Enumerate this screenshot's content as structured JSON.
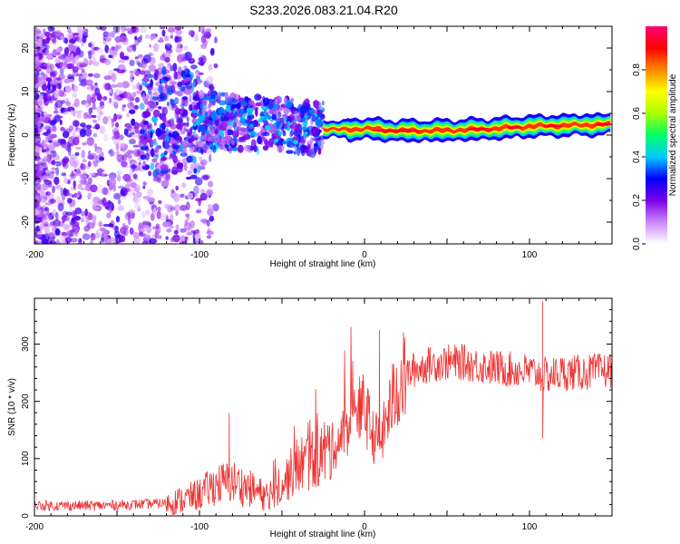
{
  "title": "S233.2026.083.21.04.R20",
  "chart_data": [
    {
      "type": "heatmap",
      "name": "spectrogram",
      "xlabel": "Height of straight line (km)",
      "ylabel": "Frequency (Hz)",
      "xlim": [
        -200,
        150
      ],
      "ylim": [
        -25,
        25
      ],
      "xticks": [
        -200,
        -100,
        0,
        100
      ],
      "yticks": [
        -20,
        -10,
        0,
        10,
        20
      ],
      "colorbar": {
        "label": "Normalized spectral amplitude",
        "range": [
          0,
          1
        ],
        "ticks": [
          "0.0",
          "0.2",
          "0.4",
          "0.6",
          "0.8"
        ],
        "colors": [
          "#ffffff",
          "#cc88ff",
          "#7a00e6",
          "#0000ff",
          "#00ccff",
          "#00ff66",
          "#aaff00",
          "#ffff00",
          "#ff8800",
          "#ff0000",
          "#ff0077"
        ]
      },
      "ridge": {
        "x": [
          -120,
          -100,
          -80,
          -60,
          -40,
          -25,
          -15,
          0,
          20,
          40,
          60,
          80,
          100,
          120,
          150
        ],
        "frequency": [
          3.0,
          3.0,
          3.0,
          2.5,
          2.0,
          1.5,
          1.2,
          1.5,
          1.0,
          1.0,
          1.2,
          1.5,
          2.0,
          2.2,
          2.5
        ]
      }
    },
    {
      "type": "line",
      "name": "snr",
      "xlabel": "Height of straight line (km)",
      "ylabel": "SNR (10 * v/v)",
      "xlim": [
        -200,
        150
      ],
      "ylim": [
        0,
        380
      ],
      "xticks": [
        -200,
        -100,
        0,
        100
      ],
      "yticks": [
        0,
        100,
        200,
        300
      ],
      "color": "#ee3333",
      "series": [
        {
          "name": "SNR",
          "x": [
            -200,
            -180,
            -160,
            -140,
            -120,
            -110,
            -100,
            -90,
            -80,
            -70,
            -60,
            -50,
            -40,
            -30,
            -20,
            -15,
            -10,
            -5,
            0,
            5,
            10,
            15,
            20,
            25,
            30,
            40,
            50,
            60,
            70,
            80,
            90,
            100,
            110,
            120,
            130,
            140,
            150
          ],
          "y": [
            18,
            18,
            18,
            20,
            22,
            28,
            38,
            55,
            60,
            48,
            35,
            55,
            90,
            100,
            120,
            130,
            160,
            175,
            190,
            140,
            130,
            185,
            225,
            245,
            255,
            265,
            268,
            268,
            262,
            258,
            255,
            252,
            245,
            250,
            250,
            252,
            255
          ],
          "spikes": [
            {
              "x": -82,
              "y": 180
            },
            {
              "x": 9,
              "y": 325
            },
            {
              "x": 108,
              "y": 375
            },
            {
              "x": 108,
              "y": 135
            }
          ]
        }
      ]
    }
  ]
}
